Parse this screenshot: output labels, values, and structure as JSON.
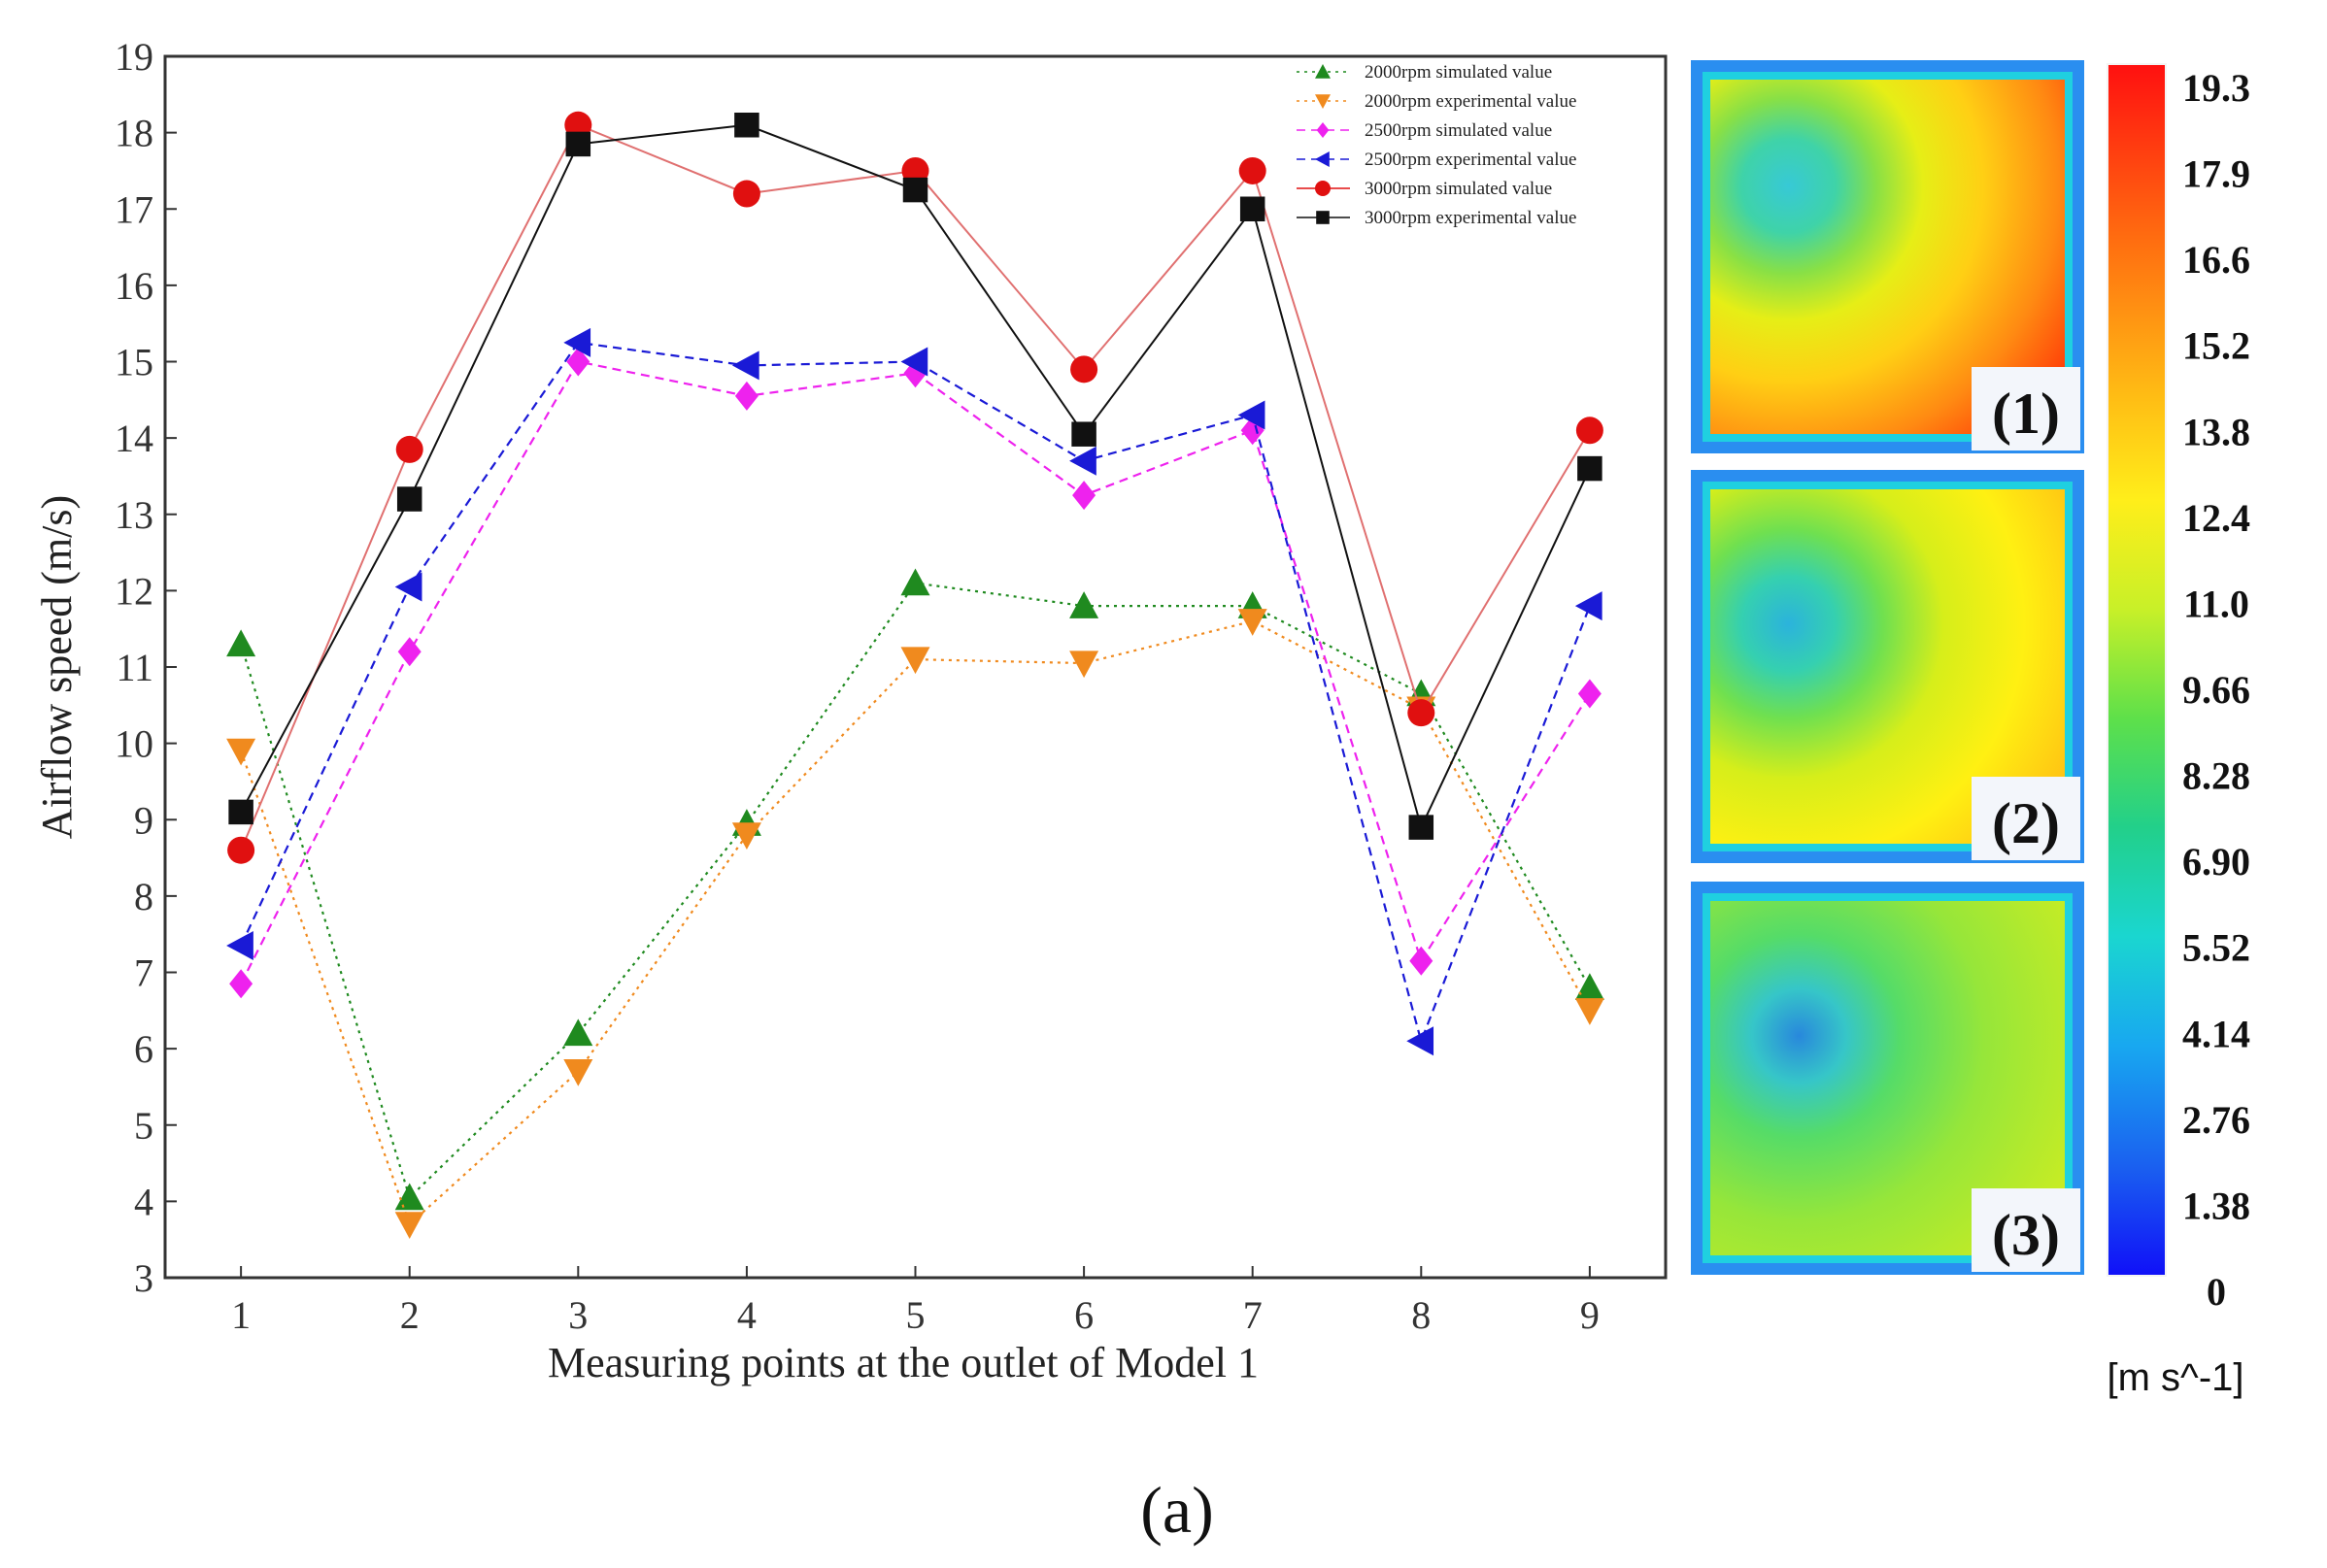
{
  "chart_data": {
    "type": "line",
    "title": "",
    "xlabel": "Measuring points at the outlet of Model 1",
    "ylabel": "Airflow speed  (m/s)",
    "x": [
      1,
      2,
      3,
      4,
      5,
      6,
      7,
      8,
      9
    ],
    "xlim": [
      0.55,
      9.45
    ],
    "ylim": [
      3,
      19
    ],
    "yticks": [
      3,
      4,
      5,
      6,
      7,
      8,
      9,
      10,
      11,
      12,
      13,
      14,
      15,
      16,
      17,
      18,
      19
    ],
    "xticks": [
      1,
      2,
      3,
      4,
      5,
      6,
      7,
      8,
      9
    ],
    "grid": false,
    "legend_position": "top-right",
    "series": [
      {
        "name": "2000rpm simulated value",
        "color": "#1f8a1f",
        "line": "dotted",
        "marker": "triangle-up",
        "values": [
          11.3,
          4.05,
          6.2,
          8.95,
          12.1,
          11.8,
          11.8,
          10.65,
          6.8
        ]
      },
      {
        "name": "2000rpm experimental value",
        "color": "#f08a1e",
        "line": "dotted",
        "marker": "triangle-down",
        "values": [
          9.9,
          3.7,
          5.7,
          8.8,
          11.1,
          11.05,
          11.6,
          10.45,
          6.5
        ]
      },
      {
        "name": "2500rpm simulated value",
        "color": "#ee22ee",
        "line": "dashed",
        "marker": "diamond",
        "values": [
          6.85,
          11.2,
          15.0,
          14.55,
          14.85,
          13.25,
          14.1,
          7.15,
          10.65
        ]
      },
      {
        "name": "2500rpm experimental value",
        "color": "#1a1ad6",
        "line": "dashed",
        "marker": "triangle-left",
        "values": [
          7.35,
          12.05,
          15.25,
          14.95,
          15.0,
          13.7,
          14.3,
          6.1,
          11.8
        ]
      },
      {
        "name": "3000rpm simulated value",
        "color": "#e01010",
        "line": "solid",
        "marker": "circle",
        "values": [
          8.6,
          13.85,
          18.1,
          17.2,
          17.5,
          14.9,
          17.5,
          10.4,
          14.1
        ]
      },
      {
        "name": "3000rpm experimental value",
        "color": "#111111",
        "line": "solid",
        "marker": "square",
        "values": [
          9.1,
          13.2,
          17.85,
          18.1,
          17.25,
          14.05,
          17.0,
          8.9,
          13.6
        ]
      }
    ]
  },
  "contour_panels": [
    "(1)",
    "(2)",
    "(3)"
  ],
  "colorbar": {
    "labels": [
      "19.3",
      "17.9",
      "16.6",
      "15.2",
      "13.8",
      "12.4",
      "11.0",
      "9.66",
      "8.28",
      "6.90",
      "5.52",
      "4.14",
      "2.76",
      "1.38",
      "0"
    ],
    "unit": "[m s^-1]"
  },
  "caption": "(a)"
}
